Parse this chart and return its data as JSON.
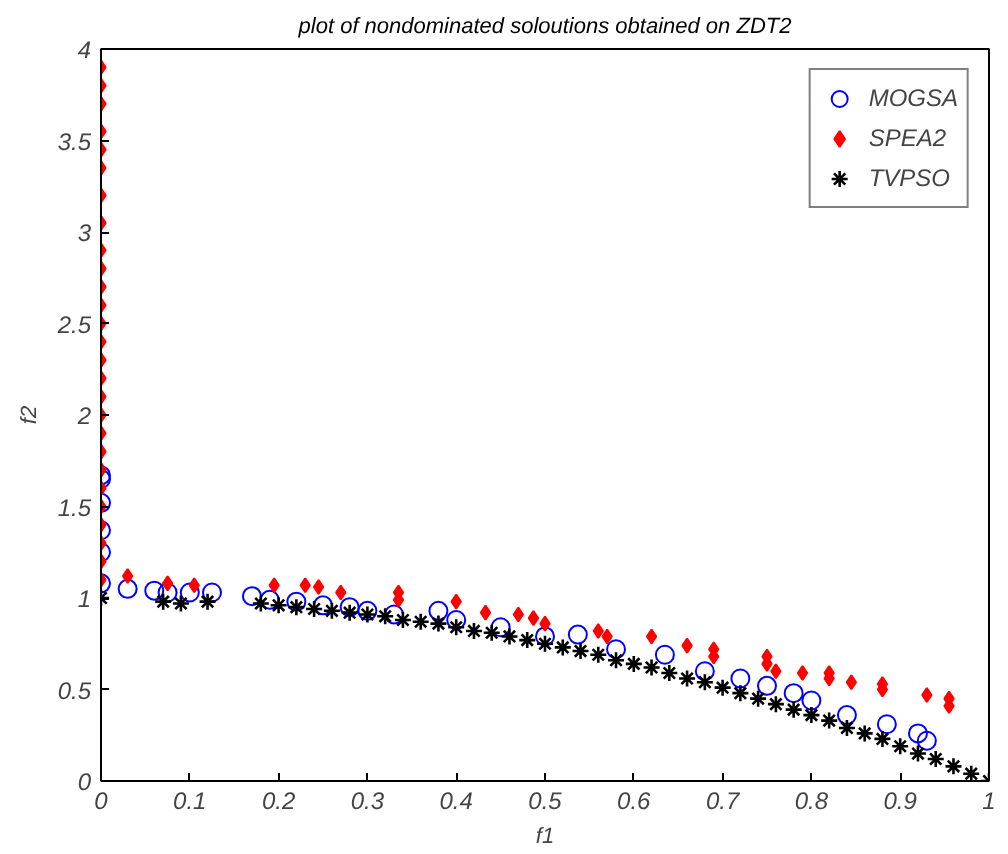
{
  "chart_data": {
    "type": "scatter",
    "title": "plot of nondominated soloutions obtained on ZDT2",
    "xlabel": "f1",
    "ylabel": "f2",
    "xlim": [
      0,
      1
    ],
    "ylim": [
      0,
      4
    ],
    "xticks": [
      0,
      0.1,
      0.2,
      0.3,
      0.4,
      0.5,
      0.6,
      0.7,
      0.8,
      0.9,
      1
    ],
    "yticks": [
      0,
      0.5,
      1,
      1.5,
      2,
      2.5,
      3,
      3.5,
      4
    ],
    "grid": false,
    "legend": "top right",
    "series": [
      {
        "name": "MOGSA",
        "color": "#0000ff",
        "marker": "circle",
        "x": [
          0,
          0,
          0,
          0,
          0,
          0,
          0.03,
          0.06,
          0.075,
          0.1,
          0.125,
          0.17,
          0.19,
          0.22,
          0.25,
          0.28,
          0.3,
          0.33,
          0.38,
          0.4,
          0.45,
          0.5,
          0.537,
          0.58,
          0.635,
          0.68,
          0.72,
          0.75,
          0.78,
          0.8,
          0.84,
          0.885,
          0.92,
          0.93
        ],
        "values": [
          1.08,
          1.25,
          1.37,
          1.52,
          1.65,
          1.67,
          1.05,
          1.04,
          1.03,
          1.03,
          1.03,
          1.01,
          0.99,
          0.98,
          0.96,
          0.95,
          0.93,
          0.91,
          0.93,
          0.88,
          0.84,
          0.79,
          0.8,
          0.72,
          0.69,
          0.6,
          0.56,
          0.52,
          0.48,
          0.44,
          0.36,
          0.31,
          0.26,
          0.22
        ]
      },
      {
        "name": "SPEA2",
        "color": "#ff0000",
        "marker": "diamond",
        "x": [
          0,
          0,
          0,
          0,
          0,
          0,
          0,
          0,
          0,
          0,
          0,
          0,
          0,
          0,
          0,
          0,
          0,
          0,
          0,
          0,
          0,
          0,
          0,
          0,
          0,
          0,
          0,
          0.03,
          0.075,
          0.105,
          0.195,
          0.23,
          0.245,
          0.27,
          0.335,
          0.335,
          0.4,
          0.433,
          0.47,
          0.487,
          0.5,
          0.56,
          0.57,
          0.62,
          0.66,
          0.69,
          0.69,
          0.75,
          0.75,
          0.76,
          0.79,
          0.82,
          0.82,
          0.845,
          0.88,
          0.88,
          0.93,
          0.955,
          0.955
        ],
        "values": [
          1.1,
          1.2,
          1.3,
          1.4,
          1.5,
          1.6,
          1.7,
          1.8,
          1.9,
          2.0,
          2.1,
          2.2,
          2.3,
          2.4,
          2.5,
          2.6,
          2.7,
          2.8,
          2.9,
          3.05,
          3.2,
          3.35,
          3.45,
          3.55,
          3.7,
          3.8,
          3.9,
          1.12,
          1.08,
          1.07,
          1.07,
          1.07,
          1.06,
          1.03,
          1.03,
          0.99,
          0.98,
          0.92,
          0.91,
          0.89,
          0.86,
          0.82,
          0.79,
          0.79,
          0.74,
          0.72,
          0.68,
          0.68,
          0.64,
          0.6,
          0.59,
          0.59,
          0.56,
          0.54,
          0.53,
          0.5,
          0.47,
          0.45,
          0.41
        ]
      },
      {
        "name": "TVPSO",
        "color": "#000000",
        "marker": "cross",
        "x": [
          0,
          0.07,
          0.09,
          0.12,
          0.18,
          0.2,
          0.22,
          0.24,
          0.26,
          0.28,
          0.3,
          0.32,
          0.34,
          0.36,
          0.38,
          0.4,
          0.42,
          0.44,
          0.46,
          0.48,
          0.5,
          0.52,
          0.54,
          0.56,
          0.58,
          0.6,
          0.62,
          0.64,
          0.66,
          0.68,
          0.7,
          0.72,
          0.74,
          0.76,
          0.78,
          0.8,
          0.82,
          0.84,
          0.86,
          0.88,
          0.9,
          0.92,
          0.94,
          0.96,
          0.98,
          1.0
        ],
        "values": [
          1.0,
          0.98,
          0.97,
          0.98,
          0.97,
          0.96,
          0.95,
          0.94,
          0.93,
          0.92,
          0.91,
          0.9,
          0.88,
          0.87,
          0.86,
          0.84,
          0.82,
          0.81,
          0.79,
          0.77,
          0.75,
          0.73,
          0.71,
          0.69,
          0.66,
          0.64,
          0.62,
          0.59,
          0.56,
          0.54,
          0.51,
          0.48,
          0.45,
          0.42,
          0.39,
          0.36,
          0.33,
          0.29,
          0.26,
          0.23,
          0.19,
          0.15,
          0.12,
          0.08,
          0.04,
          0.0
        ]
      }
    ]
  }
}
